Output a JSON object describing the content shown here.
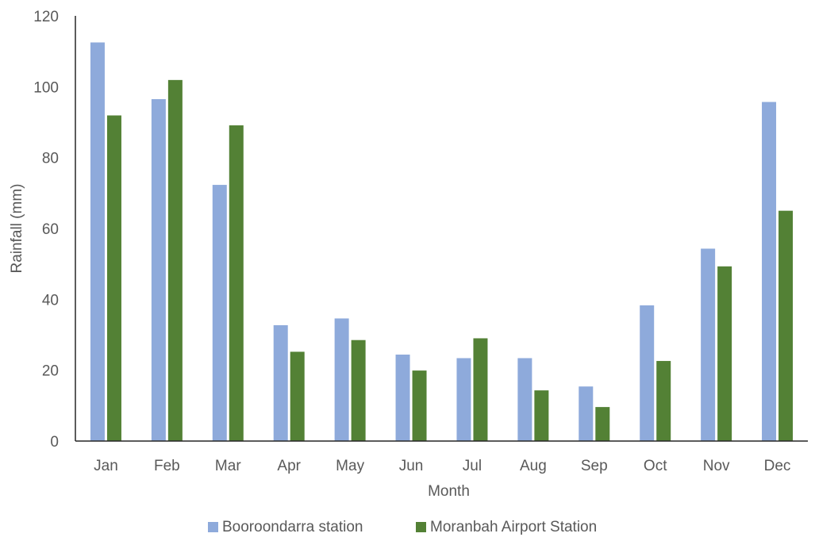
{
  "chart_data": {
    "type": "bar",
    "title": "",
    "xlabel": "Month",
    "ylabel": "Rainfall (mm)",
    "ylim": [
      0,
      120
    ],
    "yticks": [
      0,
      20,
      40,
      60,
      80,
      100,
      120
    ],
    "categories": [
      "Jan",
      "Feb",
      "Mar",
      "Apr",
      "May",
      "Jun",
      "Jul",
      "Aug",
      "Sep",
      "Oct",
      "Nov",
      "Dec"
    ],
    "series": [
      {
        "name": "Booroondarra station",
        "color": "#8eaadb",
        "values": [
          112.5,
          96.5,
          72.3,
          32.7,
          34.6,
          24.4,
          23.4,
          23.4,
          15.4,
          38.3,
          54.3,
          95.7
        ]
      },
      {
        "name": "Moranbah Airport Station",
        "color": "#538135",
        "values": [
          91.9,
          101.9,
          89.1,
          25.2,
          28.5,
          19.9,
          29.0,
          14.3,
          9.6,
          22.6,
          49.3,
          65.0
        ]
      }
    ],
    "grid": false,
    "legend_position": "bottom"
  }
}
